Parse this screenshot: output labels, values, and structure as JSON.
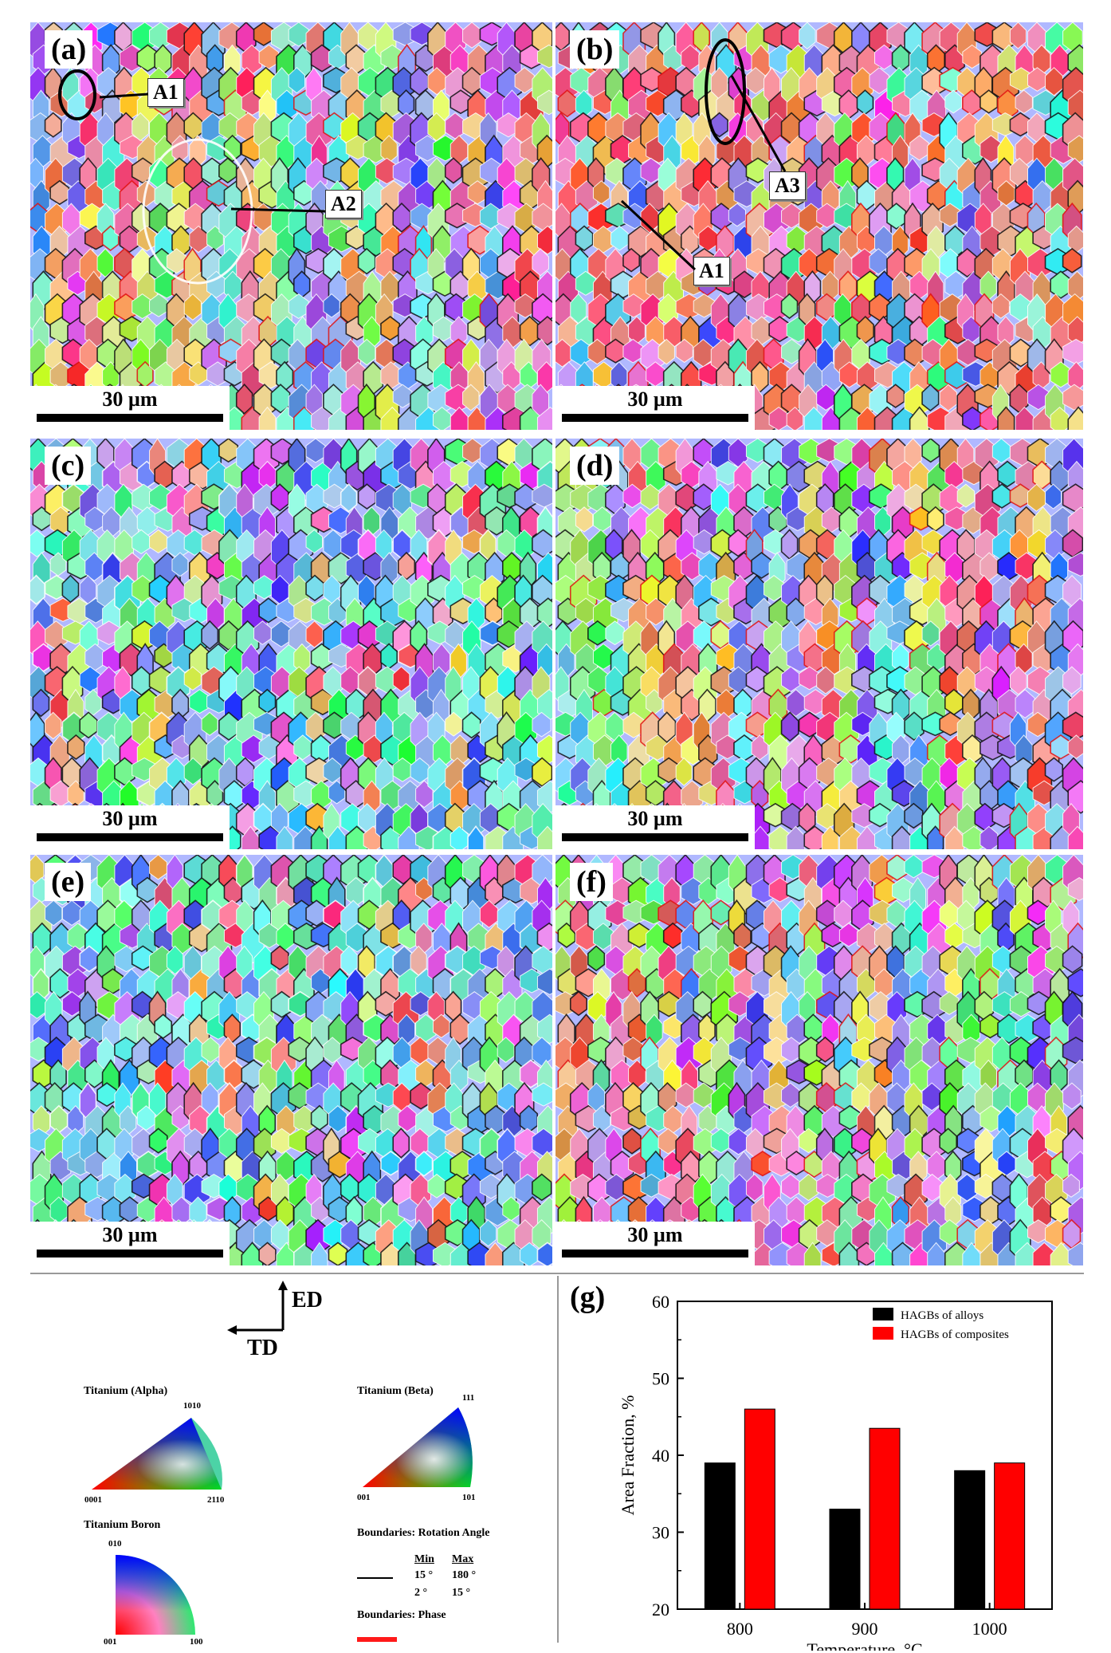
{
  "panels": [
    {
      "id": "a",
      "label": "(a)",
      "scale": "30 µm",
      "seed": 11,
      "hue_mode": "mixed",
      "callouts": [
        "A1",
        "A2"
      ]
    },
    {
      "id": "b",
      "label": "(b)",
      "scale": "30 µm",
      "seed": 23,
      "hue_mode": "warm",
      "callouts": [
        "A3",
        "A1"
      ]
    },
    {
      "id": "c",
      "label": "(c)",
      "scale": "30 µm",
      "seed": 37,
      "hue_mode": "cool"
    },
    {
      "id": "d",
      "label": "(d)",
      "scale": "30 µm",
      "seed": 41,
      "hue_mode": "mixed"
    },
    {
      "id": "e",
      "label": "(e)",
      "scale": "30 µm",
      "seed": 53,
      "hue_mode": "cool"
    },
    {
      "id": "f",
      "label": "(f)",
      "scale": "30 µm",
      "seed": 67,
      "hue_mode": "mixed"
    }
  ],
  "axes_key": {
    "ed": "ED",
    "td": "TD"
  },
  "legend": {
    "alpha": {
      "title": "Titanium (Alpha)",
      "c1": "0001",
      "c2": "2110",
      "c3": "1010"
    },
    "beta": {
      "title": "Titanium (Beta)",
      "c1": "001",
      "c2": "101",
      "c3": "111"
    },
    "boron": {
      "title": "Titanium Boron",
      "c1": "001",
      "c2": "100",
      "c3": "010"
    },
    "rotation": {
      "title": "Boundaries: Rotation Angle",
      "min_h": "Min",
      "max_h": "Max",
      "r1_min": "15 °",
      "r1_max": "180 °",
      "r2_min": "2 °",
      "r2_max": "15 °"
    },
    "phase": {
      "title": "Boundaries: Phase"
    }
  },
  "colors": {
    "black_bar": "#000000",
    "red_bar": "#ff0000",
    "phase": "#ff1a1a"
  },
  "chart_data": {
    "type": "bar",
    "panel_label": "(g)",
    "categories": [
      "800",
      "900",
      "1000"
    ],
    "series": [
      {
        "name": "HAGBs of alloys",
        "values": [
          39,
          33,
          38
        ],
        "color": "#000000"
      },
      {
        "name": "HAGBs of composites",
        "values": [
          46,
          43.5,
          39
        ],
        "color": "#ff0000"
      }
    ],
    "xlabel": "Temperature, °C",
    "ylabel": "Area Fraction, %",
    "ylim": [
      20,
      60
    ],
    "yticks": [
      "20",
      "30",
      "40",
      "50",
      "60"
    ],
    "grid": false,
    "legend_position": "top-right"
  }
}
